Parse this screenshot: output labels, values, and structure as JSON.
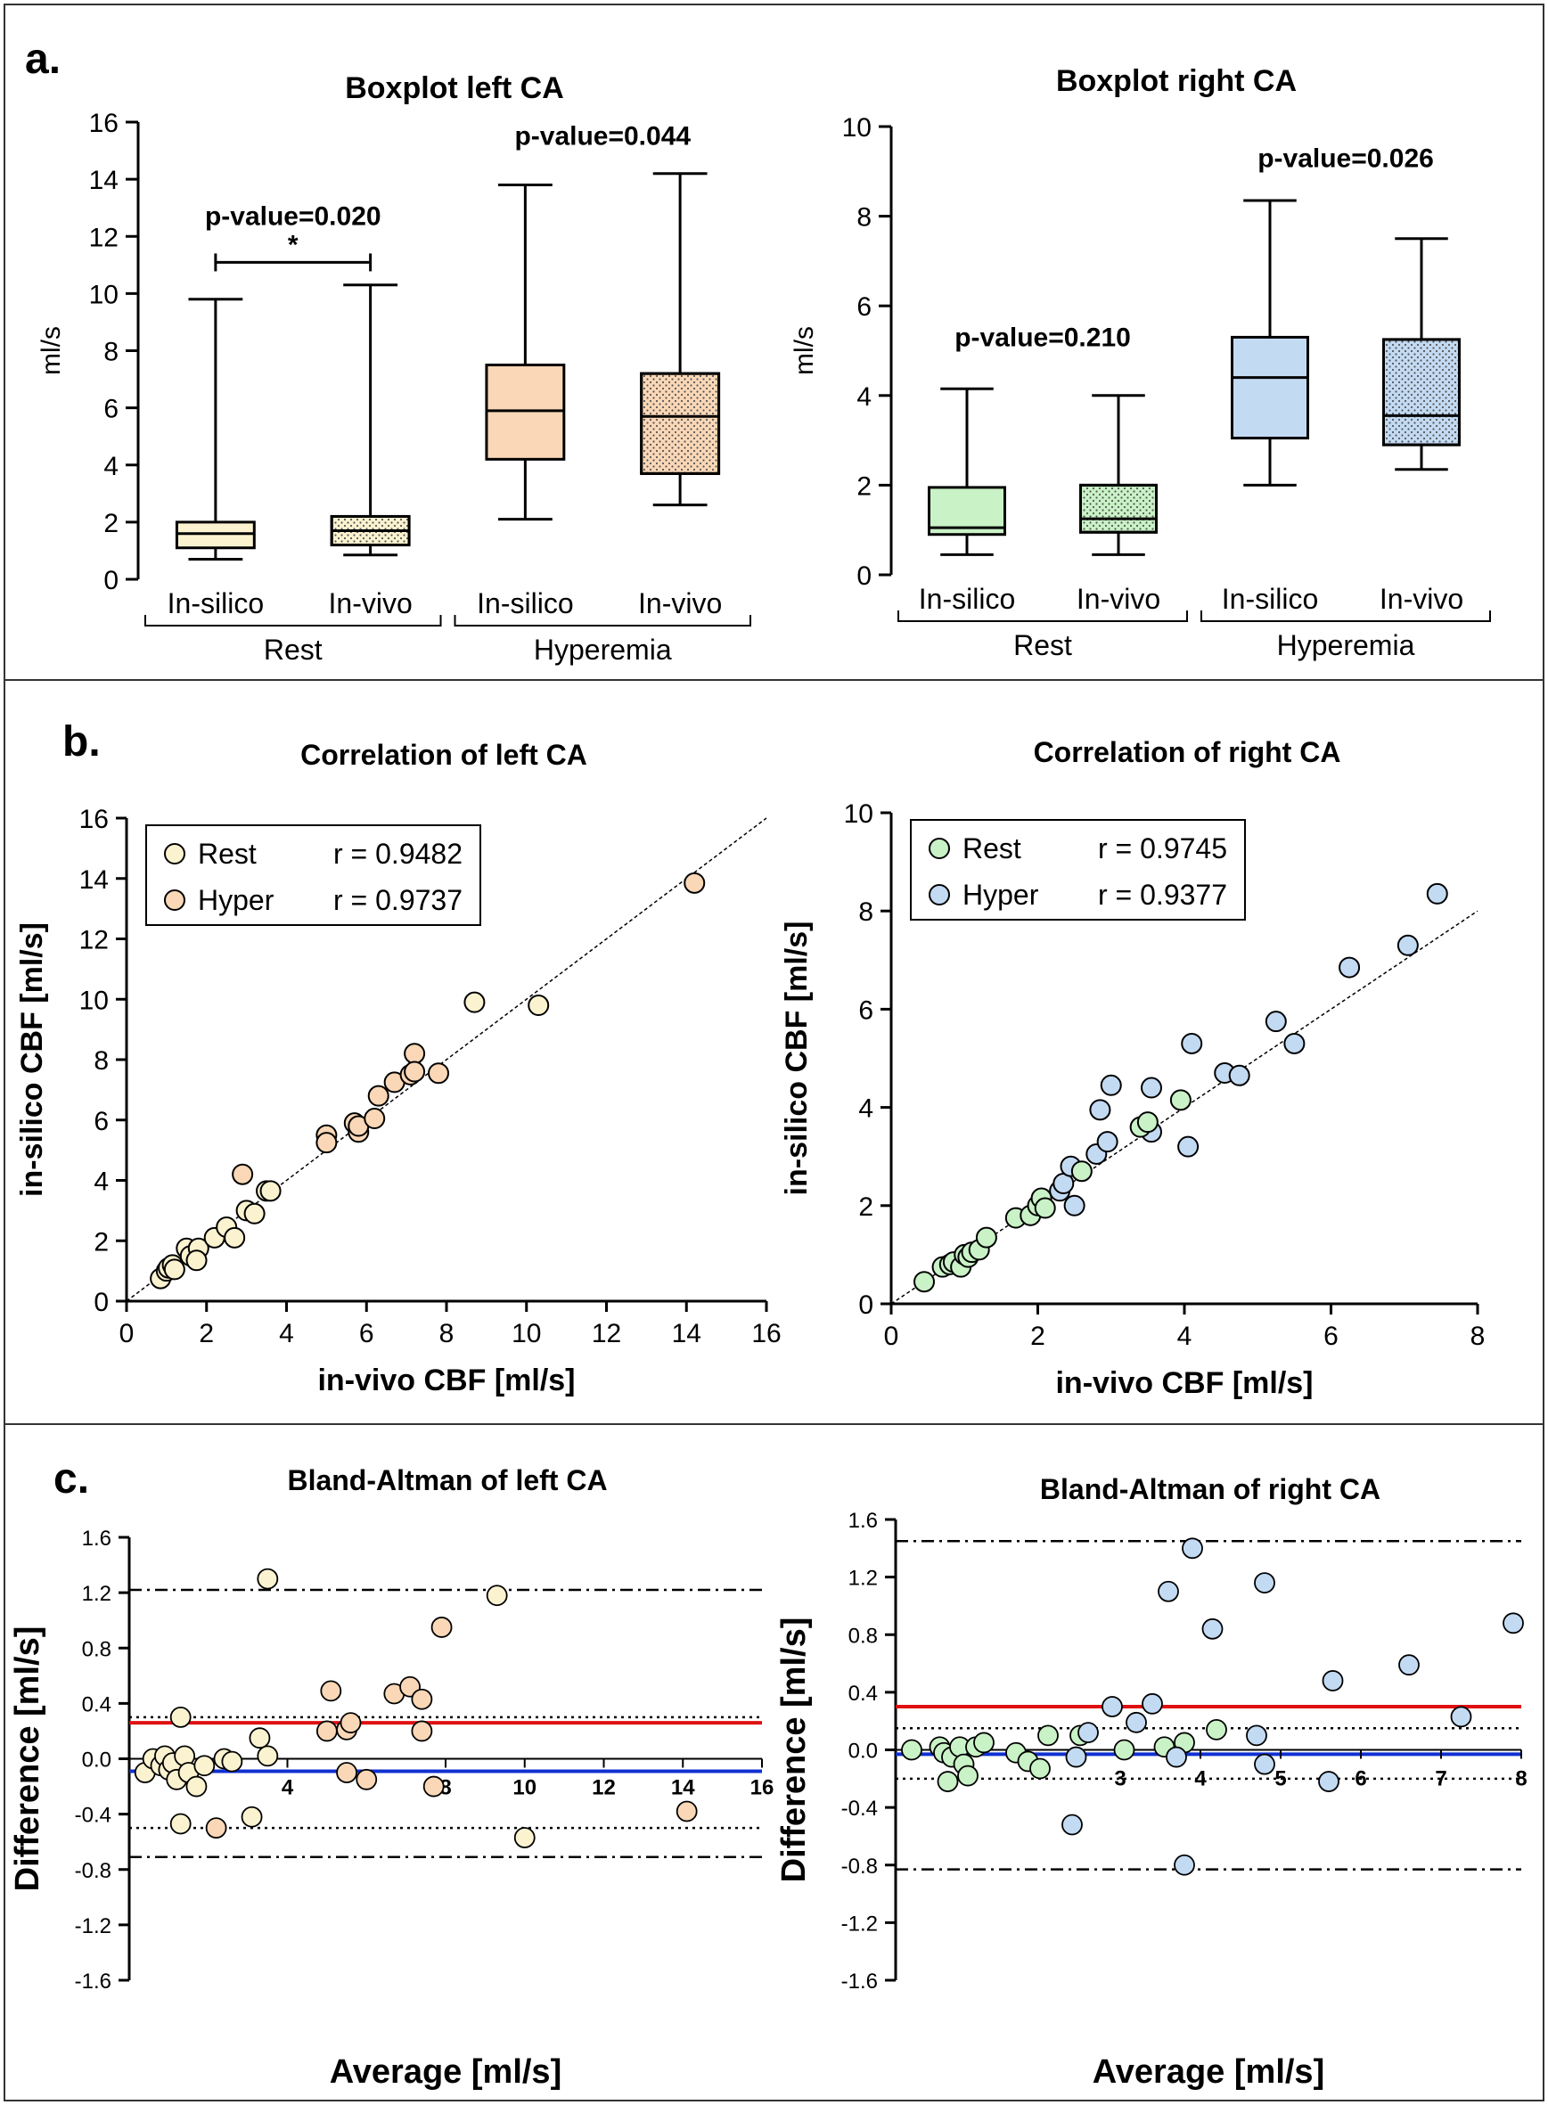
{
  "panels": {
    "a": "a.",
    "b": "b.",
    "c": "c."
  },
  "colors": {
    "rest_left": "#fbf3cf",
    "hyper_left": "#fad7b6",
    "rest_right": "#c9f2c6",
    "hyper_right": "#c3daf3",
    "mean_line": "#1030d0",
    "bias_line": "#e01010"
  },
  "chart_data": [
    {
      "id": "box-left",
      "type": "boxplot",
      "title": "Boxplot left CA",
      "ylabel": "ml/s",
      "ylim": [
        0,
        16
      ],
      "yticks": [
        0,
        2,
        4,
        6,
        8,
        10,
        12,
        14,
        16
      ],
      "groups": [
        "Rest",
        "Hyperemia"
      ],
      "categories": [
        "In-silico",
        "In-vivo",
        "In-silico",
        "In-vivo"
      ],
      "boxes": [
        {
          "label": "In-silico",
          "group": "Rest",
          "min": 0.7,
          "q1": 1.1,
          "median": 1.6,
          "q3": 2.0,
          "max": 9.8,
          "color": "#fbf3cf",
          "dotted": false
        },
        {
          "label": "In-vivo",
          "group": "Rest",
          "min": 0.85,
          "q1": 1.2,
          "median": 1.7,
          "q3": 2.2,
          "max": 10.3,
          "color": "#fbf3cf",
          "dotted": true
        },
        {
          "label": "In-silico",
          "group": "Hyperemia",
          "min": 2.1,
          "q1": 4.2,
          "median": 5.9,
          "q3": 7.5,
          "max": 13.8,
          "color": "#fad7b6",
          "dotted": false
        },
        {
          "label": "In-vivo",
          "group": "Hyperemia",
          "min": 2.6,
          "q1": 3.7,
          "median": 5.7,
          "q3": 7.2,
          "max": 14.2,
          "color": "#fad7b6",
          "dotted": true
        }
      ],
      "annotations": [
        {
          "text": "p-value=0.020",
          "group": "Rest",
          "y": 12.4,
          "bracket": true,
          "star": "*"
        },
        {
          "text": "p-value=0.044",
          "group": "Hyperemia",
          "y": 15.2,
          "bracket": false
        }
      ]
    },
    {
      "id": "box-right",
      "type": "boxplot",
      "title": "Boxplot right CA",
      "ylabel": "ml/s",
      "ylim": [
        0,
        10
      ],
      "yticks": [
        0,
        2,
        4,
        6,
        8,
        10
      ],
      "groups": [
        "Rest",
        "Hyperemia"
      ],
      "categories": [
        "In-silico",
        "In-vivo",
        "In-silico",
        "In-vivo"
      ],
      "boxes": [
        {
          "label": "In-silico",
          "group": "Rest",
          "min": 0.45,
          "q1": 0.9,
          "median": 1.05,
          "q3": 1.95,
          "max": 4.15,
          "color": "#c9f2c6",
          "dotted": false
        },
        {
          "label": "In-vivo",
          "group": "Rest",
          "min": 0.45,
          "q1": 0.95,
          "median": 1.25,
          "q3": 2.0,
          "max": 4.0,
          "color": "#c9f2c6",
          "dotted": true
        },
        {
          "label": "In-silico",
          "group": "Hyperemia",
          "min": 2.0,
          "q1": 3.05,
          "median": 4.4,
          "q3": 5.3,
          "max": 8.35,
          "color": "#c3daf3",
          "dotted": false
        },
        {
          "label": "In-vivo",
          "group": "Hyperemia",
          "min": 2.35,
          "q1": 2.9,
          "median": 3.55,
          "q3": 5.25,
          "max": 7.5,
          "color": "#c3daf3",
          "dotted": true
        }
      ],
      "annotations": [
        {
          "text": "p-value=0.210",
          "group": "Rest",
          "y": 5.1,
          "bracket": false
        },
        {
          "text": "p-value=0.026",
          "group": "Hyperemia",
          "y": 9.1,
          "bracket": false
        }
      ]
    },
    {
      "id": "scatter-left",
      "type": "scatter",
      "title": "Correlation of left CA",
      "xlabel": "in-vivo CBF [ml/s]",
      "ylabel": "in-silico CBF [ml/s]",
      "xlim": [
        0,
        16
      ],
      "ylim": [
        0,
        16
      ],
      "xticks": [
        0,
        2,
        4,
        6,
        8,
        10,
        12,
        14,
        16
      ],
      "yticks": [
        0,
        2,
        4,
        6,
        8,
        10,
        12,
        14,
        16
      ],
      "identity_line": [
        [
          0,
          0
        ],
        [
          16,
          16
        ]
      ],
      "series": [
        {
          "name": "Rest",
          "r": "r = 0.9482",
          "color": "#fbf3cf",
          "points": [
            [
              0.85,
              0.75
            ],
            [
              1.0,
              1.0
            ],
            [
              1.05,
              1.1
            ],
            [
              1.15,
              1.2
            ],
            [
              1.2,
              1.05
            ],
            [
              1.5,
              1.75
            ],
            [
              1.6,
              1.5
            ],
            [
              1.8,
              1.75
            ],
            [
              1.75,
              1.35
            ],
            [
              2.2,
              2.1
            ],
            [
              2.5,
              2.45
            ],
            [
              2.7,
              2.1
            ],
            [
              3.0,
              3.0
            ],
            [
              3.2,
              2.9
            ],
            [
              3.5,
              3.65
            ],
            [
              3.6,
              3.65
            ],
            [
              8.7,
              9.9
            ],
            [
              10.3,
              9.8
            ]
          ]
        },
        {
          "name": "Hyper",
          "r": "r = 0.9737",
          "color": "#fad7b6",
          "points": [
            [
              2.9,
              4.2
            ],
            [
              5.0,
              5.5
            ],
            [
              5.0,
              5.25
            ],
            [
              5.7,
              5.9
            ],
            [
              5.8,
              5.6
            ],
            [
              5.8,
              5.8
            ],
            [
              6.2,
              6.05
            ],
            [
              6.3,
              6.8
            ],
            [
              6.7,
              7.25
            ],
            [
              7.1,
              7.5
            ],
            [
              7.2,
              8.2
            ],
            [
              7.2,
              7.6
            ],
            [
              7.8,
              7.55
            ],
            [
              14.2,
              13.85
            ]
          ]
        }
      ]
    },
    {
      "id": "scatter-right",
      "type": "scatter",
      "title": "Correlation of right CA",
      "xlabel": "in-vivo CBF [ml/s]",
      "ylabel": "in-silico CBF [ml/s]",
      "xlim": [
        0,
        8
      ],
      "ylim": [
        0,
        10
      ],
      "xticks": [
        0,
        2,
        4,
        6,
        8
      ],
      "yticks": [
        0,
        2,
        4,
        6,
        8,
        10
      ],
      "identity_line": [
        [
          0,
          0
        ],
        [
          8,
          8
        ]
      ],
      "series": [
        {
          "name": "Rest",
          "r": "r = 0.9745",
          "color": "#c9f2c6",
          "points": [
            [
              0.45,
              0.45
            ],
            [
              0.7,
              0.75
            ],
            [
              0.8,
              0.8
            ],
            [
              0.85,
              0.85
            ],
            [
              0.95,
              0.75
            ],
            [
              1.0,
              1.0
            ],
            [
              1.05,
              0.95
            ],
            [
              1.1,
              1.05
            ],
            [
              1.2,
              1.1
            ],
            [
              1.3,
              1.35
            ],
            [
              1.7,
              1.75
            ],
            [
              1.9,
              1.8
            ],
            [
              2.0,
              2.0
            ],
            [
              2.05,
              2.15
            ],
            [
              2.1,
              1.95
            ],
            [
              3.4,
              3.6
            ],
            [
              3.5,
              3.7
            ],
            [
              3.95,
              4.15
            ],
            [
              2.6,
              2.7
            ]
          ]
        },
        {
          "name": "Hyper",
          "r": "r = 0.9377",
          "color": "#c3daf3",
          "points": [
            [
              2.3,
              2.3
            ],
            [
              2.35,
              2.45
            ],
            [
              2.45,
              2.8
            ],
            [
              2.5,
              2.0
            ],
            [
              2.8,
              3.05
            ],
            [
              2.85,
              3.95
            ],
            [
              2.95,
              3.3
            ],
            [
              3.0,
              4.45
            ],
            [
              3.55,
              4.4
            ],
            [
              3.55,
              3.5
            ],
            [
              4.05,
              3.2
            ],
            [
              4.1,
              5.3
            ],
            [
              4.55,
              4.7
            ],
            [
              4.75,
              4.65
            ],
            [
              5.25,
              5.75
            ],
            [
              5.5,
              5.3
            ],
            [
              6.25,
              6.85
            ],
            [
              7.05,
              7.3
            ],
            [
              7.45,
              8.35
            ]
          ]
        }
      ]
    },
    {
      "id": "ba-left",
      "type": "scatter",
      "title": "Bland-Altman of left CA",
      "xlabel": "Average [ml/s]",
      "ylabel": "Difference [ml/s]",
      "xlim": [
        0,
        16
      ],
      "ylim": [
        -1.6,
        1.6
      ],
      "xticks": [
        4,
        8,
        10,
        12,
        14,
        16
      ],
      "xticklabels": [
        "4",
        "8",
        "10",
        "12",
        "14",
        "16"
      ],
      "yticks": [
        -1.6,
        -1.2,
        -0.8,
        -0.4,
        0.0,
        0.4,
        0.8,
        1.2,
        1.6
      ],
      "yticklabels": [
        "-1.6",
        "-1.2",
        "-0.8",
        "-0.4",
        "0.0",
        "0.4",
        "0.8",
        "1.2",
        "1.6"
      ],
      "lines": {
        "mean": -0.09,
        "bias": 0.26,
        "loa_dotted": [
          0.3,
          -0.5
        ],
        "loa_dashdot": [
          1.22,
          -0.71
        ]
      },
      "series": [
        {
          "name": "Rest",
          "color": "#fbf3cf",
          "points": [
            [
              0.4,
              -0.1
            ],
            [
              0.6,
              0.0
            ],
            [
              0.8,
              -0.05
            ],
            [
              0.9,
              0.02
            ],
            [
              1.0,
              -0.08
            ],
            [
              1.1,
              -0.03
            ],
            [
              1.2,
              -0.15
            ],
            [
              1.3,
              0.3
            ],
            [
              1.4,
              0.02
            ],
            [
              1.5,
              -0.1
            ],
            [
              1.7,
              -0.2
            ],
            [
              1.9,
              -0.05
            ],
            [
              2.4,
              0.0
            ],
            [
              2.6,
              -0.02
            ],
            [
              3.3,
              0.15
            ],
            [
              3.5,
              0.02
            ],
            [
              1.3,
              -0.47
            ],
            [
              3.1,
              -0.42
            ],
            [
              10.0,
              -0.57
            ],
            [
              9.3,
              1.18
            ],
            [
              3.5,
              1.3
            ]
          ]
        },
        {
          "name": "Hyper",
          "color": "#fad7b6",
          "points": [
            [
              2.2,
              -0.5
            ],
            [
              5.0,
              0.2
            ],
            [
              5.1,
              0.49
            ],
            [
              5.5,
              0.21
            ],
            [
              5.6,
              0.26
            ],
            [
              5.5,
              -0.1
            ],
            [
              6.0,
              -0.15
            ],
            [
              6.7,
              0.47
            ],
            [
              7.1,
              0.52
            ],
            [
              7.4,
              0.43
            ],
            [
              7.4,
              0.2
            ],
            [
              7.7,
              -0.2
            ],
            [
              7.9,
              0.95
            ],
            [
              14.1,
              -0.38
            ]
          ]
        }
      ]
    },
    {
      "id": "ba-right",
      "type": "scatter",
      "title": "Bland-Altman of right CA",
      "xlabel": "Average [ml/s]",
      "ylabel": "Difference [ml/s]",
      "xlim": [
        0.2,
        8
      ],
      "ylim": [
        -1.6,
        1.6
      ],
      "xticks": [
        3,
        4,
        5,
        6,
        7,
        8
      ],
      "xticklabels": [
        "3",
        "4",
        "5",
        "6",
        "7",
        "8"
      ],
      "yticks": [
        -1.6,
        -1.2,
        -0.8,
        -0.4,
        0.0,
        0.4,
        0.8,
        1.2,
        1.6
      ],
      "yticklabels": [
        "-1.6",
        "-1.2",
        "-0.8",
        "-0.4",
        "0.0",
        "0.4",
        "0.8",
        "1.2",
        "1.6"
      ],
      "lines": {
        "mean": -0.03,
        "bias": 0.3,
        "loa_dotted": [
          0.15,
          -0.2
        ],
        "loa_dashdot": [
          1.45,
          -0.83
        ]
      },
      "series": [
        {
          "name": "Rest",
          "color": "#c9f2c6",
          "points": [
            [
              0.4,
              0.0
            ],
            [
              0.75,
              0.02
            ],
            [
              0.8,
              -0.02
            ],
            [
              0.85,
              -0.22
            ],
            [
              0.9,
              -0.05
            ],
            [
              1.0,
              0.02
            ],
            [
              1.05,
              -0.1
            ],
            [
              1.1,
              -0.18
            ],
            [
              1.2,
              0.02
            ],
            [
              1.3,
              0.05
            ],
            [
              1.7,
              -0.02
            ],
            [
              1.85,
              -0.08
            ],
            [
              2.0,
              -0.13
            ],
            [
              2.1,
              0.1
            ],
            [
              3.05,
              0.0
            ],
            [
              3.55,
              0.02
            ],
            [
              3.8,
              0.05
            ],
            [
              4.2,
              0.14
            ],
            [
              2.5,
              0.1
            ]
          ]
        },
        {
          "name": "Hyper",
          "color": "#c3daf3",
          "points": [
            [
              2.4,
              -0.52
            ],
            [
              2.45,
              -0.05
            ],
            [
              2.6,
              0.12
            ],
            [
              2.9,
              0.3
            ],
            [
              3.2,
              0.19
            ],
            [
              3.4,
              0.32
            ],
            [
              3.6,
              1.1
            ],
            [
              3.7,
              -0.05
            ],
            [
              3.8,
              -0.8
            ],
            [
              3.9,
              1.4
            ],
            [
              4.15,
              0.84
            ],
            [
              4.7,
              0.1
            ],
            [
              4.8,
              -0.1
            ],
            [
              4.8,
              1.16
            ],
            [
              5.6,
              -0.22
            ],
            [
              5.65,
              0.48
            ],
            [
              6.6,
              0.59
            ],
            [
              7.25,
              0.23
            ],
            [
              7.9,
              0.88
            ]
          ]
        }
      ]
    }
  ]
}
